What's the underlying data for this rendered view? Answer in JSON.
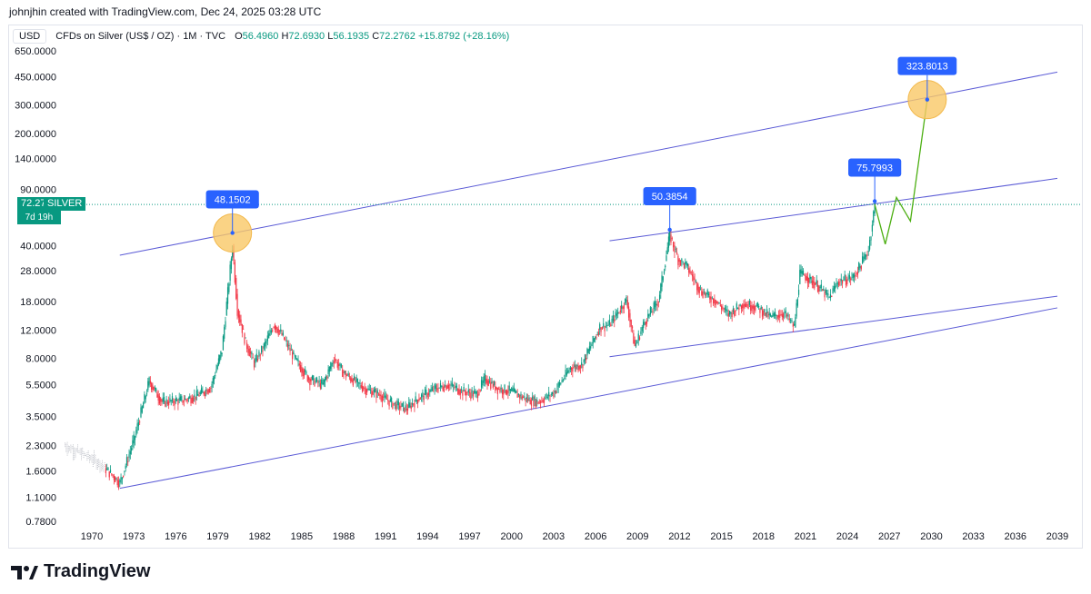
{
  "header": {
    "created_by": "johnjhin created with TradingView.com, Dec 24, 2025 03:28 UTC"
  },
  "legend": {
    "currency": "USD",
    "symbol": "CFDs on Silver (US$ / OZ) · 1M · TVC",
    "o_label": "O",
    "o": "56.4960",
    "h_label": "H",
    "h": "72.6930",
    "l_label": "L",
    "l": "56.1935",
    "c_label": "C",
    "c": "72.2762",
    "change": "+15.8792 (+28.16%)"
  },
  "price_label": {
    "price": "72.2762",
    "countdown": "7d 19h",
    "ticker": "SILVER"
  },
  "brand": {
    "name": "TradingView"
  },
  "colors": {
    "up": "#089981",
    "down": "#f23645",
    "channel": "#5b5bd6",
    "projection": "#4caf12",
    "callout": "#2962ff",
    "highlight": "#f9c866"
  },
  "chart_data": {
    "type": "line",
    "title": "CFDs on Silver (US$ / OZ) · 1M · TVC",
    "y_scale": "log",
    "ylim": [
      0.7,
      700
    ],
    "y_ticks": [
      "650.0000",
      "450.0000",
      "300.0000",
      "200.0000",
      "140.0000",
      "90.0000",
      "40.0000",
      "28.0000",
      "18.0000",
      "12.0000",
      "8.0000",
      "5.5000",
      "3.5000",
      "2.3000",
      "1.6000",
      "1.1000",
      "0.7800"
    ],
    "x_ticks": [
      "1970",
      "1973",
      "1976",
      "1979",
      "1982",
      "1985",
      "1988",
      "1991",
      "1994",
      "1997",
      "2000",
      "2003",
      "2006",
      "2009",
      "2012",
      "2015",
      "2018",
      "2021",
      "2024",
      "2027",
      "2030",
      "2033",
      "2036",
      "2039"
    ],
    "series": [
      {
        "name": "SILVER",
        "x": [
          1968.0,
          1969.5,
          1970.5,
          1971.5,
          1972.0,
          1973.0,
          1974.1,
          1975.0,
          1976.5,
          1977.5,
          1978.5,
          1979.3,
          1980.05,
          1980.4,
          1981.0,
          1981.6,
          1982.3,
          1983.0,
          1983.5,
          1984.5,
          1985.5,
          1986.5,
          1987.3,
          1988.0,
          1989.5,
          1990.5,
          1991.5,
          1992.5,
          1993.3,
          1994.5,
          1995.5,
          1996.5,
          1997.5,
          1998.1,
          1999.0,
          2000.0,
          2001.0,
          2001.9,
          2003.0,
          2004.2,
          2005.0,
          2006.3,
          2007.0,
          2008.2,
          2008.8,
          2009.5,
          2010.5,
          2011.3,
          2011.9,
          2012.5,
          2013.5,
          2014.5,
          2015.5,
          2016.5,
          2017.5,
          2018.5,
          2019.5,
          2020.2,
          2020.6,
          2021.0,
          2021.8,
          2022.7,
          2023.3,
          2024.4,
          2024.9,
          2025.5,
          2025.95
        ],
        "y": [
          2.3,
          2.0,
          1.8,
          1.5,
          1.35,
          2.5,
          5.8,
          4.3,
          4.4,
          4.7,
          5.3,
          9.0,
          40.0,
          16.0,
          10.0,
          7.5,
          9.5,
          13.0,
          11.5,
          8.0,
          6.0,
          5.5,
          8.0,
          6.5,
          5.2,
          4.8,
          4.2,
          3.9,
          4.5,
          5.2,
          5.5,
          5.0,
          4.8,
          6.0,
          5.2,
          5.0,
          4.5,
          4.3,
          4.9,
          7.0,
          7.3,
          12.5,
          13.0,
          18.5,
          9.5,
          13.5,
          18.5,
          47.0,
          33.0,
          30.0,
          21.0,
          18.5,
          15.0,
          17.5,
          16.8,
          14.5,
          15.3,
          12.5,
          27.0,
          26.0,
          23.0,
          19.0,
          24.0,
          25.5,
          30.0,
          38.0,
          72.28
        ]
      },
      {
        "name": "",
        "x": [
          2025.95,
          2026.7,
          2027.5,
          2028.5,
          2029.7
        ],
        "y": [
          72.28,
          41.0,
          80.0,
          57.0,
          323.8
        ]
      }
    ],
    "channel_lines": [
      {
        "x": [
          1972.0,
          2039.0
        ],
        "y": [
          35.0,
          480.0
        ]
      },
      {
        "x": [
          1972.0,
          2039.0
        ],
        "y": [
          1.25,
          16.5
        ]
      },
      {
        "x": [
          2007.0,
          2039.0
        ],
        "y": [
          43.0,
          105.0
        ]
      },
      {
        "x": [
          2007.0,
          2039.0
        ],
        "y": [
          8.2,
          19.5
        ]
      }
    ],
    "annotations": [
      {
        "label": "48.1502",
        "x": 1980.05,
        "y": 48.1502,
        "highlight": true
      },
      {
        "label": "50.3854",
        "x": 2011.3,
        "y": 50.3854,
        "highlight": false
      },
      {
        "label": "75.7993",
        "x": 2025.95,
        "y": 75.7993,
        "highlight": false
      },
      {
        "label": "323.8013",
        "x": 2029.7,
        "y": 323.8013,
        "highlight": true
      }
    ],
    "current_price": 72.2762,
    "grid": false,
    "legend_position": "top-left"
  }
}
